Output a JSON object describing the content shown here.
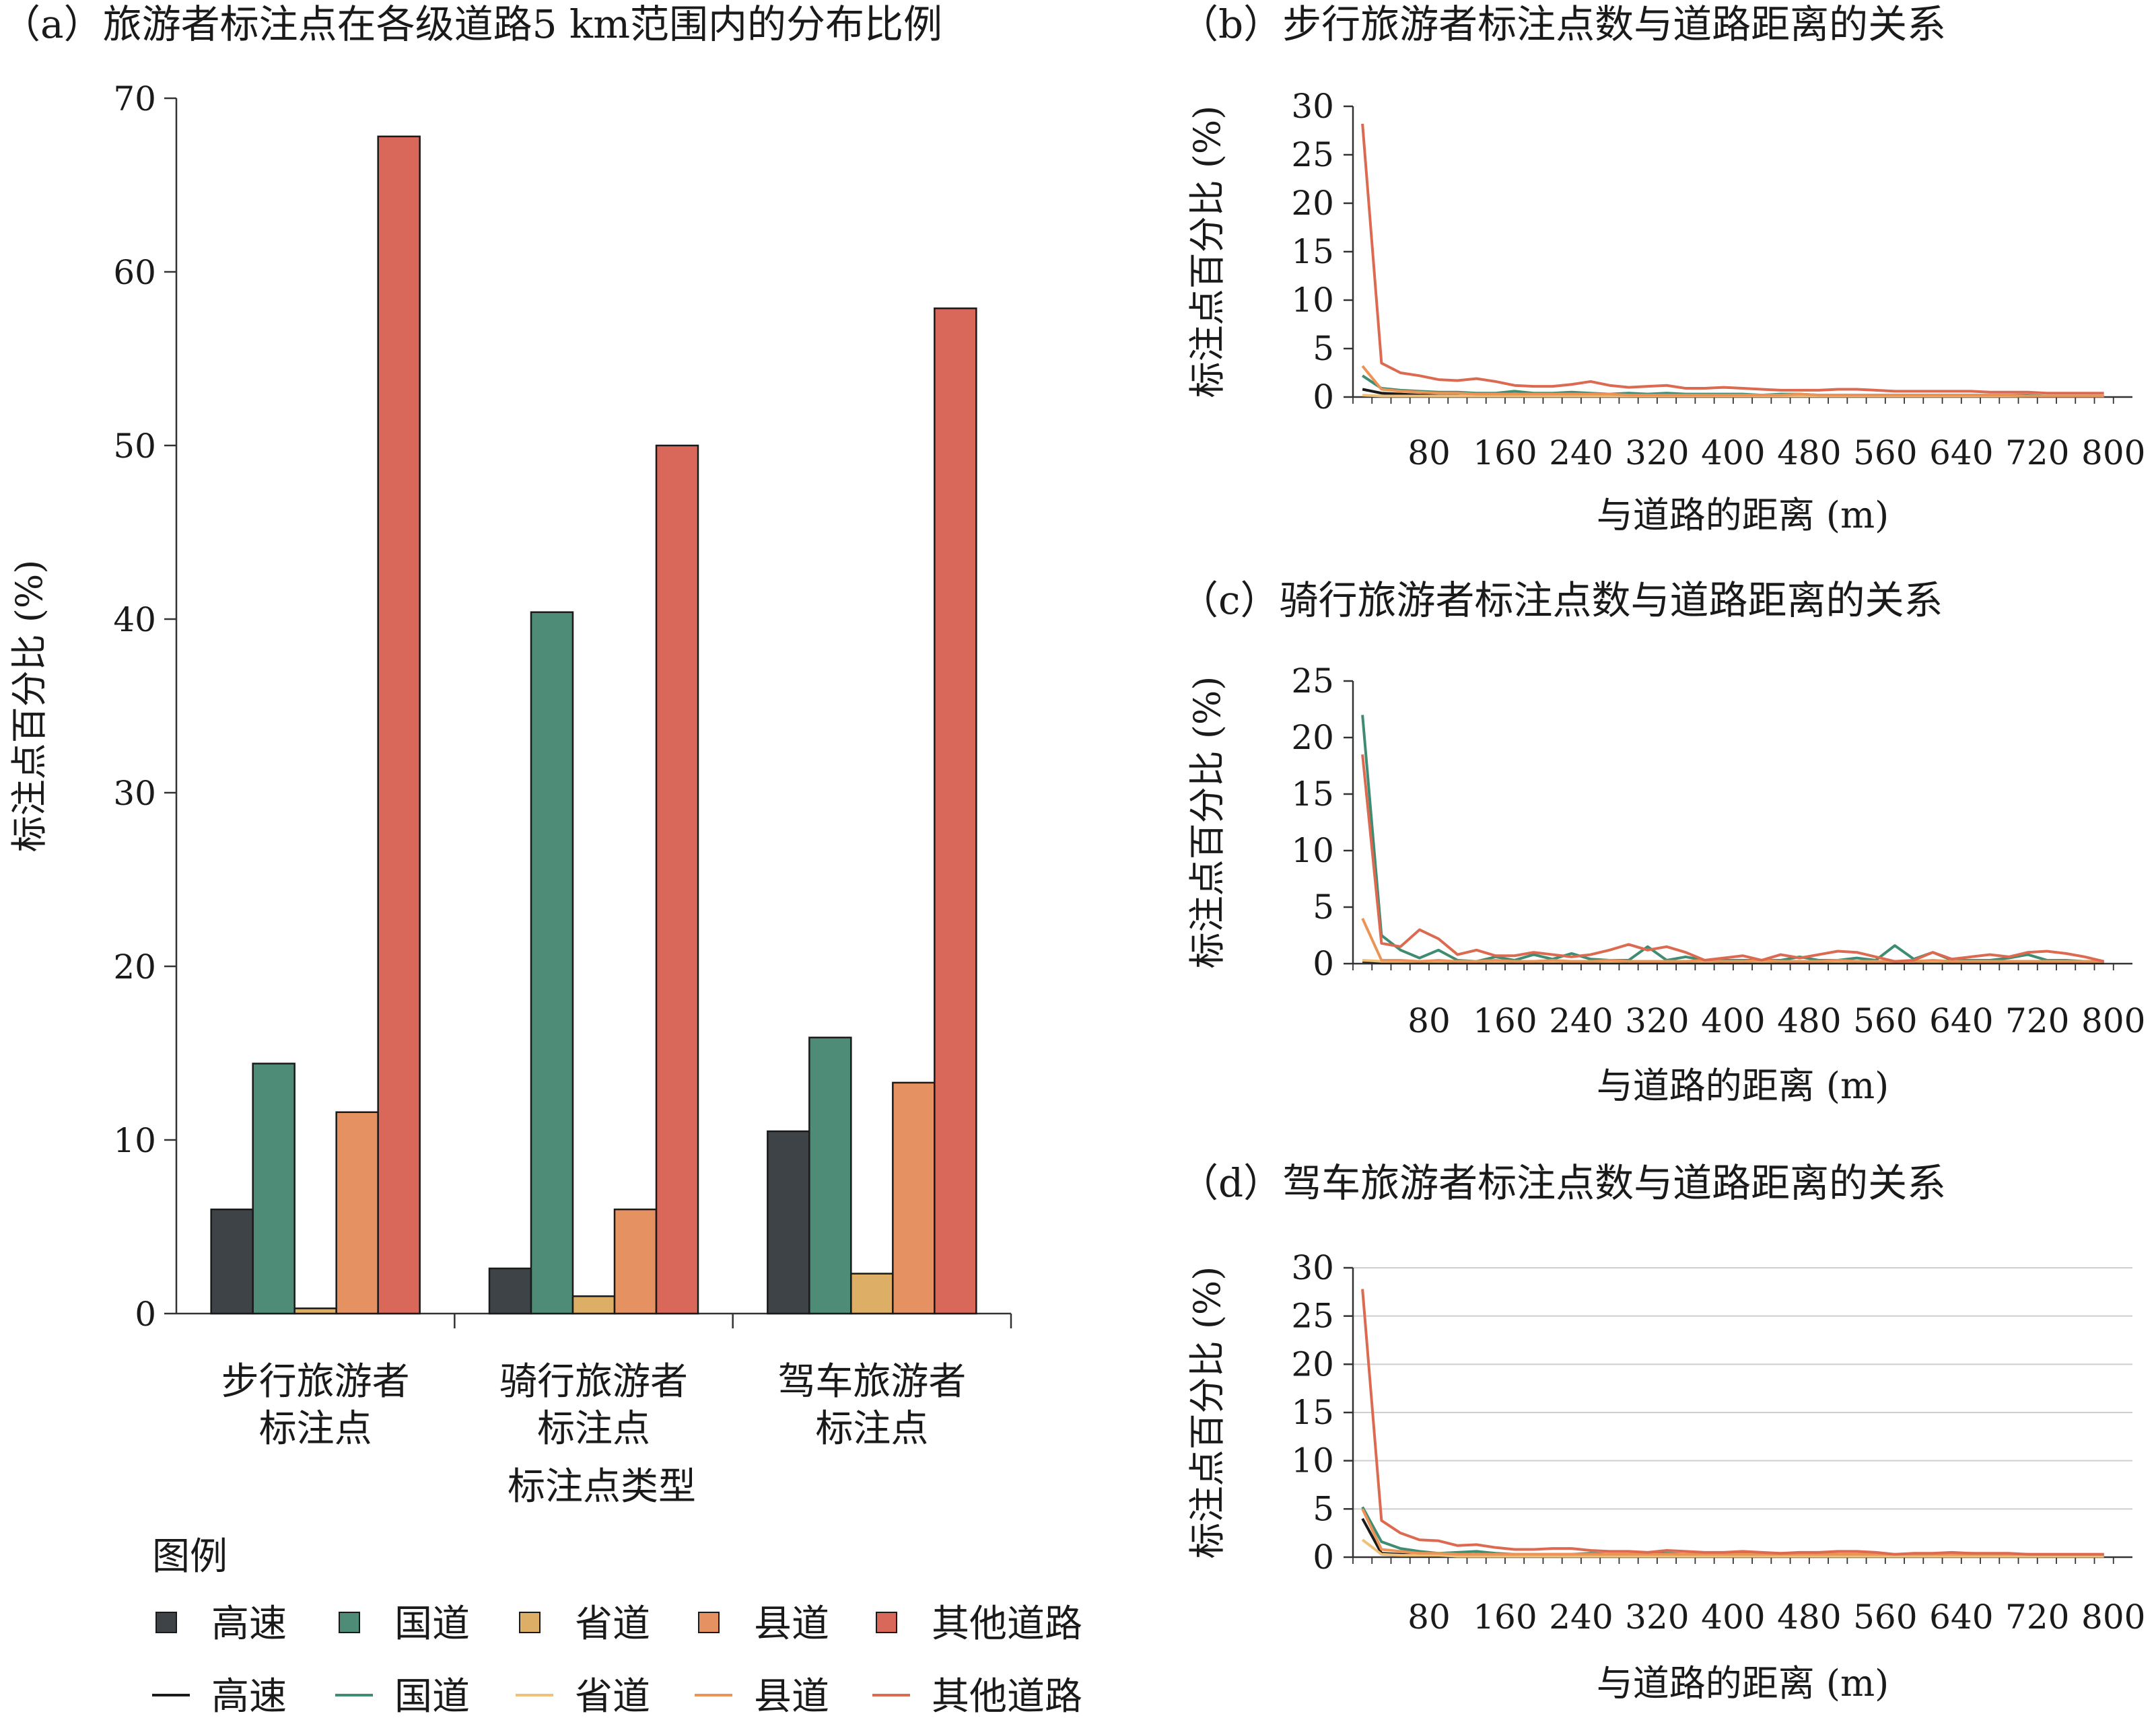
{
  "legend": {
    "title": "图例",
    "bar_items": [
      {
        "label": "高速",
        "color": "#3e4347"
      },
      {
        "label": "国道",
        "color": "#4e8c78"
      },
      {
        "label": "省道",
        "color": "#dcae66"
      },
      {
        "label": "县道",
        "color": "#e69162"
      },
      {
        "label": "其他道路",
        "color": "#d9675a"
      }
    ],
    "line_items": [
      {
        "label": "高速",
        "color": "#1a1a1a"
      },
      {
        "label": "国道",
        "color": "#3f8c72"
      },
      {
        "label": "省道",
        "color": "#f0c078"
      },
      {
        "label": "县道",
        "color": "#ec9456"
      },
      {
        "label": "其他道路",
        "color": "#dc6a50"
      }
    ]
  },
  "chart_data": [
    {
      "id": "a",
      "type": "bar",
      "title": "（a）旅游者标注点在各级道路5 km范围内的分布比例",
      "xlabel": "标注点类型",
      "ylabel": "标注点百分比 (%)",
      "ylim": [
        0,
        70
      ],
      "yticks": [
        "0",
        "10",
        "20",
        "30",
        "40",
        "50",
        "60",
        "70"
      ],
      "categories": [
        {
          "line1": "步行旅游者",
          "line2": "标注点"
        },
        {
          "line1": "骑行旅游者",
          "line2": "标注点"
        },
        {
          "line1": "驾车旅游者",
          "line2": "标注点"
        }
      ],
      "series": [
        {
          "name": "高速",
          "color": "#3e4347",
          "values": [
            6.0,
            2.6,
            10.5
          ]
        },
        {
          "name": "国道",
          "color": "#4e8c78",
          "values": [
            14.4,
            40.4,
            15.9
          ]
        },
        {
          "name": "省道",
          "color": "#dcae66",
          "values": [
            0.3,
            1.0,
            2.3
          ]
        },
        {
          "name": "县道",
          "color": "#e69162",
          "values": [
            11.6,
            6.0,
            13.3
          ]
        },
        {
          "name": "其他道路",
          "color": "#d9675a",
          "values": [
            67.8,
            50.0,
            57.9
          ]
        }
      ]
    },
    {
      "id": "b",
      "type": "line",
      "title": "（b）步行旅游者标注点数与道路距离的关系",
      "xlabel": "与道路的距离 (m)",
      "ylabel": "标注点百分比 (%)",
      "ylim": [
        0,
        30
      ],
      "yticks": [
        "0",
        "5",
        "10",
        "15",
        "20",
        "25",
        "30"
      ],
      "xticks": [
        "80",
        "160",
        "240",
        "320",
        "400",
        "480",
        "560",
        "640",
        "720",
        "800"
      ],
      "gridlines": false,
      "x": [
        10,
        30,
        50,
        70,
        90,
        110,
        130,
        150,
        170,
        190,
        210,
        230,
        250,
        270,
        290,
        310,
        330,
        350,
        370,
        390,
        410,
        430,
        450,
        470,
        490,
        510,
        530,
        550,
        570,
        590,
        610,
        630,
        650,
        670,
        690,
        710,
        730,
        750,
        770,
        790
      ],
      "series": [
        {
          "name": "高速",
          "color": "#1a1a1a",
          "values": [
            0.8,
            0.4,
            0.3,
            0.2,
            0.2,
            0.2,
            0.2,
            0.1,
            0.2,
            0.1,
            0.1,
            0.1,
            0.1,
            0.1,
            0.1,
            0.1,
            0.1,
            0.1,
            0.1,
            0.1,
            0.1,
            0.1,
            0.1,
            0.1,
            0.1,
            0.1,
            0.1,
            0.1,
            0.1,
            0.1,
            0.1,
            0.1,
            0.1,
            0.1,
            0.1,
            0.1,
            0.1,
            0.1,
            0.1,
            0.1
          ]
        },
        {
          "name": "国道",
          "color": "#3f8c72",
          "values": [
            2.2,
            0.9,
            0.7,
            0.6,
            0.5,
            0.5,
            0.4,
            0.4,
            0.6,
            0.4,
            0.4,
            0.5,
            0.4,
            0.3,
            0.4,
            0.3,
            0.4,
            0.3,
            0.3,
            0.3,
            0.3,
            0.2,
            0.3,
            0.3,
            0.2,
            0.2,
            0.2,
            0.2,
            0.2,
            0.2,
            0.2,
            0.2,
            0.2,
            0.2,
            0.2,
            0.2,
            0.1,
            0.1,
            0.1,
            0.1
          ]
        },
        {
          "name": "省道",
          "color": "#f0c078",
          "values": [
            0.2,
            0.1,
            0.1,
            0.1,
            0.1,
            0.1,
            0.1,
            0.1,
            0.1,
            0.1,
            0.1,
            0.1,
            0.1,
            0.1,
            0.1,
            0.1,
            0.1,
            0.1,
            0.1,
            0.1,
            0.1,
            0.1,
            0.1,
            0.1,
            0.1,
            0.1,
            0.1,
            0.1,
            0.1,
            0.1,
            0.1,
            0.1,
            0.1,
            0.1,
            0.1,
            0.1,
            0.1,
            0.1,
            0.1,
            0.1
          ]
        },
        {
          "name": "县道",
          "color": "#ec9456",
          "values": [
            3.2,
            0.8,
            0.6,
            0.5,
            0.4,
            0.4,
            0.3,
            0.3,
            0.3,
            0.3,
            0.3,
            0.3,
            0.3,
            0.3,
            0.2,
            0.2,
            0.2,
            0.2,
            0.2,
            0.2,
            0.2,
            0.2,
            0.2,
            0.3,
            0.2,
            0.2,
            0.2,
            0.2,
            0.2,
            0.2,
            0.2,
            0.2,
            0.2,
            0.2,
            0.2,
            0.1,
            0.1,
            0.1,
            0.1,
            0.1
          ]
        },
        {
          "name": "其他道路",
          "color": "#dc6a50",
          "values": [
            28.2,
            3.5,
            2.5,
            2.2,
            1.8,
            1.7,
            1.9,
            1.6,
            1.2,
            1.1,
            1.1,
            1.3,
            1.6,
            1.2,
            1.0,
            1.1,
            1.2,
            0.9,
            0.9,
            1.0,
            0.9,
            0.8,
            0.7,
            0.7,
            0.7,
            0.8,
            0.8,
            0.7,
            0.6,
            0.6,
            0.6,
            0.6,
            0.6,
            0.5,
            0.5,
            0.5,
            0.4,
            0.4,
            0.4,
            0.4
          ]
        }
      ]
    },
    {
      "id": "c",
      "type": "line",
      "title": "（c）骑行旅游者标注点数与道路距离的关系",
      "xlabel": "与道路的距离 (m)",
      "ylabel": "标注点百分比 (%)",
      "ylim": [
        0,
        25
      ],
      "yticks": [
        "0",
        "5",
        "10",
        "15",
        "20",
        "25"
      ],
      "xticks": [
        "80",
        "160",
        "240",
        "320",
        "400",
        "480",
        "560",
        "640",
        "720",
        "800"
      ],
      "gridlines": false,
      "x": [
        10,
        30,
        50,
        70,
        90,
        110,
        130,
        150,
        170,
        190,
        210,
        230,
        250,
        270,
        290,
        310,
        330,
        350,
        370,
        390,
        410,
        430,
        450,
        470,
        490,
        510,
        530,
        550,
        570,
        590,
        610,
        630,
        650,
        670,
        690,
        710,
        730,
        750,
        770,
        790
      ],
      "series": [
        {
          "name": "高速",
          "color": "#1a1a1a",
          "values": [
            0.2,
            0.1,
            0.1,
            0.1,
            0.1,
            0.1,
            0.1,
            0.1,
            0.1,
            0.1,
            0.1,
            0.1,
            0.1,
            0.1,
            0.1,
            0.1,
            0.1,
            0.1,
            0.1,
            0.1,
            0.1,
            0.1,
            0.1,
            0.1,
            0.1,
            0.1,
            0.1,
            0.1,
            0.1,
            0.1,
            0.1,
            0.1,
            0.1,
            0.1,
            0.1,
            0.1,
            0.1,
            0.1,
            0.1,
            0.1
          ]
        },
        {
          "name": "国道",
          "color": "#3f8c72",
          "values": [
            22.0,
            2.5,
            1.2,
            0.5,
            1.2,
            0.3,
            0.2,
            0.6,
            0.3,
            0.8,
            0.4,
            0.9,
            0.4,
            0.3,
            0.3,
            1.5,
            0.3,
            0.6,
            0.3,
            0.3,
            0.3,
            0.3,
            0.3,
            0.6,
            0.3,
            0.3,
            0.5,
            0.3,
            1.6,
            0.4,
            1.0,
            0.3,
            0.3,
            0.3,
            0.5,
            0.8,
            0.3,
            0.3,
            0.2,
            0.2
          ]
        },
        {
          "name": "省道",
          "color": "#f0c078",
          "values": [
            0.3,
            0.2,
            0.2,
            0.2,
            0.2,
            0.2,
            0.2,
            0.2,
            0.2,
            0.2,
            0.2,
            0.2,
            0.2,
            0.2,
            0.2,
            0.2,
            0.2,
            0.2,
            0.2,
            0.2,
            0.2,
            0.2,
            0.2,
            0.2,
            0.2,
            0.2,
            0.2,
            0.2,
            0.2,
            0.2,
            0.2,
            0.2,
            0.2,
            0.2,
            0.2,
            0.2,
            0.2,
            0.2,
            0.2,
            0.2
          ]
        },
        {
          "name": "县道",
          "color": "#ec9456",
          "values": [
            4.0,
            0.3,
            0.3,
            0.2,
            0.3,
            0.2,
            0.2,
            0.3,
            0.2,
            0.2,
            0.3,
            0.2,
            0.2,
            0.3,
            0.2,
            0.2,
            0.2,
            0.2,
            0.3,
            0.2,
            0.2,
            0.3,
            0.2,
            0.2,
            0.2,
            0.3,
            0.2,
            0.2,
            0.2,
            0.2,
            0.3,
            0.2,
            0.2,
            0.2,
            0.2,
            0.2,
            0.2,
            0.2,
            0.2,
            0.2
          ]
        },
        {
          "name": "其他道路",
          "color": "#dc6a50",
          "values": [
            18.5,
            1.8,
            1.5,
            3.0,
            2.2,
            0.8,
            1.2,
            0.7,
            0.7,
            1.0,
            0.8,
            0.6,
            0.8,
            1.2,
            1.7,
            1.2,
            1.5,
            1.0,
            0.3,
            0.5,
            0.7,
            0.3,
            0.8,
            0.5,
            0.8,
            1.1,
            1.0,
            0.6,
            0.2,
            0.3,
            1.0,
            0.4,
            0.6,
            0.8,
            0.6,
            1.0,
            1.1,
            0.9,
            0.6,
            0.2
          ]
        }
      ]
    },
    {
      "id": "d",
      "type": "line",
      "title": "（d）驾车旅游者标注点数与道路距离的关系",
      "xlabel": "与道路的距离 (m)",
      "ylabel": "标注点百分比 (%)",
      "ylim": [
        0,
        30
      ],
      "yticks": [
        "0",
        "5",
        "10",
        "15",
        "20",
        "25",
        "30"
      ],
      "xticks": [
        "80",
        "160",
        "240",
        "320",
        "400",
        "480",
        "560",
        "640",
        "720",
        "800"
      ],
      "gridlines": true,
      "x": [
        10,
        30,
        50,
        70,
        90,
        110,
        130,
        150,
        170,
        190,
        210,
        230,
        250,
        270,
        290,
        310,
        330,
        350,
        370,
        390,
        410,
        430,
        450,
        470,
        490,
        510,
        530,
        550,
        570,
        590,
        610,
        630,
        650,
        670,
        690,
        710,
        730,
        750,
        770,
        790
      ],
      "series": [
        {
          "name": "高速",
          "color": "#1a1a1a",
          "values": [
            4.0,
            0.4,
            0.3,
            0.2,
            0.2,
            0.2,
            0.3,
            0.2,
            0.2,
            0.2,
            0.2,
            0.2,
            0.3,
            0.2,
            0.2,
            0.2,
            0.2,
            0.2,
            0.2,
            0.2,
            0.2,
            0.2,
            0.2,
            0.2,
            0.2,
            0.2,
            0.2,
            0.2,
            0.2,
            0.2,
            0.2,
            0.2,
            0.2,
            0.2,
            0.2,
            0.2,
            0.2,
            0.2,
            0.2,
            0.2
          ]
        },
        {
          "name": "国道",
          "color": "#3f8c72",
          "values": [
            5.2,
            1.6,
            0.9,
            0.6,
            0.4,
            0.5,
            0.6,
            0.4,
            0.3,
            0.3,
            0.3,
            0.3,
            0.4,
            0.3,
            0.3,
            0.3,
            0.4,
            0.3,
            0.3,
            0.3,
            0.5,
            0.3,
            0.3,
            0.3,
            0.3,
            0.3,
            0.3,
            0.3,
            0.2,
            0.3,
            0.3,
            0.3,
            0.4,
            0.3,
            0.3,
            0.3,
            0.2,
            0.2,
            0.2,
            0.2
          ]
        },
        {
          "name": "省道",
          "color": "#f0c078",
          "values": [
            1.8,
            0.3,
            0.2,
            0.2,
            0.2,
            0.1,
            0.1,
            0.1,
            0.1,
            0.1,
            0.1,
            0.1,
            0.1,
            0.1,
            0.1,
            0.1,
            0.1,
            0.1,
            0.1,
            0.1,
            0.1,
            0.1,
            0.1,
            0.1,
            0.1,
            0.1,
            0.1,
            0.1,
            0.1,
            0.1,
            0.1,
            0.1,
            0.1,
            0.1,
            0.1,
            0.1,
            0.1,
            0.1,
            0.1,
            0.1
          ]
        },
        {
          "name": "县道",
          "color": "#ec9456",
          "values": [
            5.0,
            0.8,
            0.6,
            0.4,
            0.4,
            0.3,
            0.3,
            0.3,
            0.3,
            0.3,
            0.3,
            0.3,
            0.3,
            0.3,
            0.3,
            0.3,
            0.3,
            0.3,
            0.3,
            0.3,
            0.3,
            0.3,
            0.3,
            0.3,
            0.3,
            0.3,
            0.3,
            0.3,
            0.3,
            0.3,
            0.3,
            0.3,
            0.3,
            0.3,
            0.3,
            0.3,
            0.3,
            0.3,
            0.3,
            0.3
          ]
        },
        {
          "name": "其他道路",
          "color": "#dc6a50",
          "values": [
            27.8,
            3.8,
            2.5,
            1.8,
            1.7,
            1.2,
            1.3,
            1.0,
            0.8,
            0.8,
            0.9,
            0.9,
            0.7,
            0.6,
            0.6,
            0.5,
            0.7,
            0.6,
            0.5,
            0.5,
            0.6,
            0.5,
            0.4,
            0.5,
            0.5,
            0.6,
            0.6,
            0.5,
            0.3,
            0.4,
            0.4,
            0.5,
            0.4,
            0.4,
            0.4,
            0.3,
            0.3,
            0.3,
            0.3,
            0.3
          ]
        }
      ]
    }
  ]
}
